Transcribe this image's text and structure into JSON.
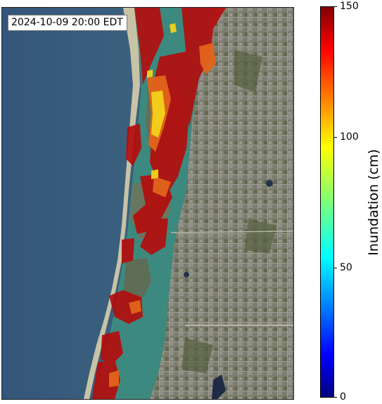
{
  "map": {
    "timestamp": "2024-10-09 20:00 EDT",
    "basemap": "satellite imagery",
    "colors": {
      "gulf_water": "#3d6280",
      "shallow_water": "#3c8a7f",
      "land": "#6f735f",
      "urban": "#8a8a80",
      "inundation_high": "#b30d0d",
      "inundation_mid": "#e66a10",
      "inundation_low": "#f2d21a"
    }
  },
  "colorbar": {
    "label": "Inundation (cm)",
    "ticks": [
      "0",
      "50",
      "100",
      "150"
    ],
    "min": 0,
    "max": 150,
    "colormap": "jet"
  }
}
